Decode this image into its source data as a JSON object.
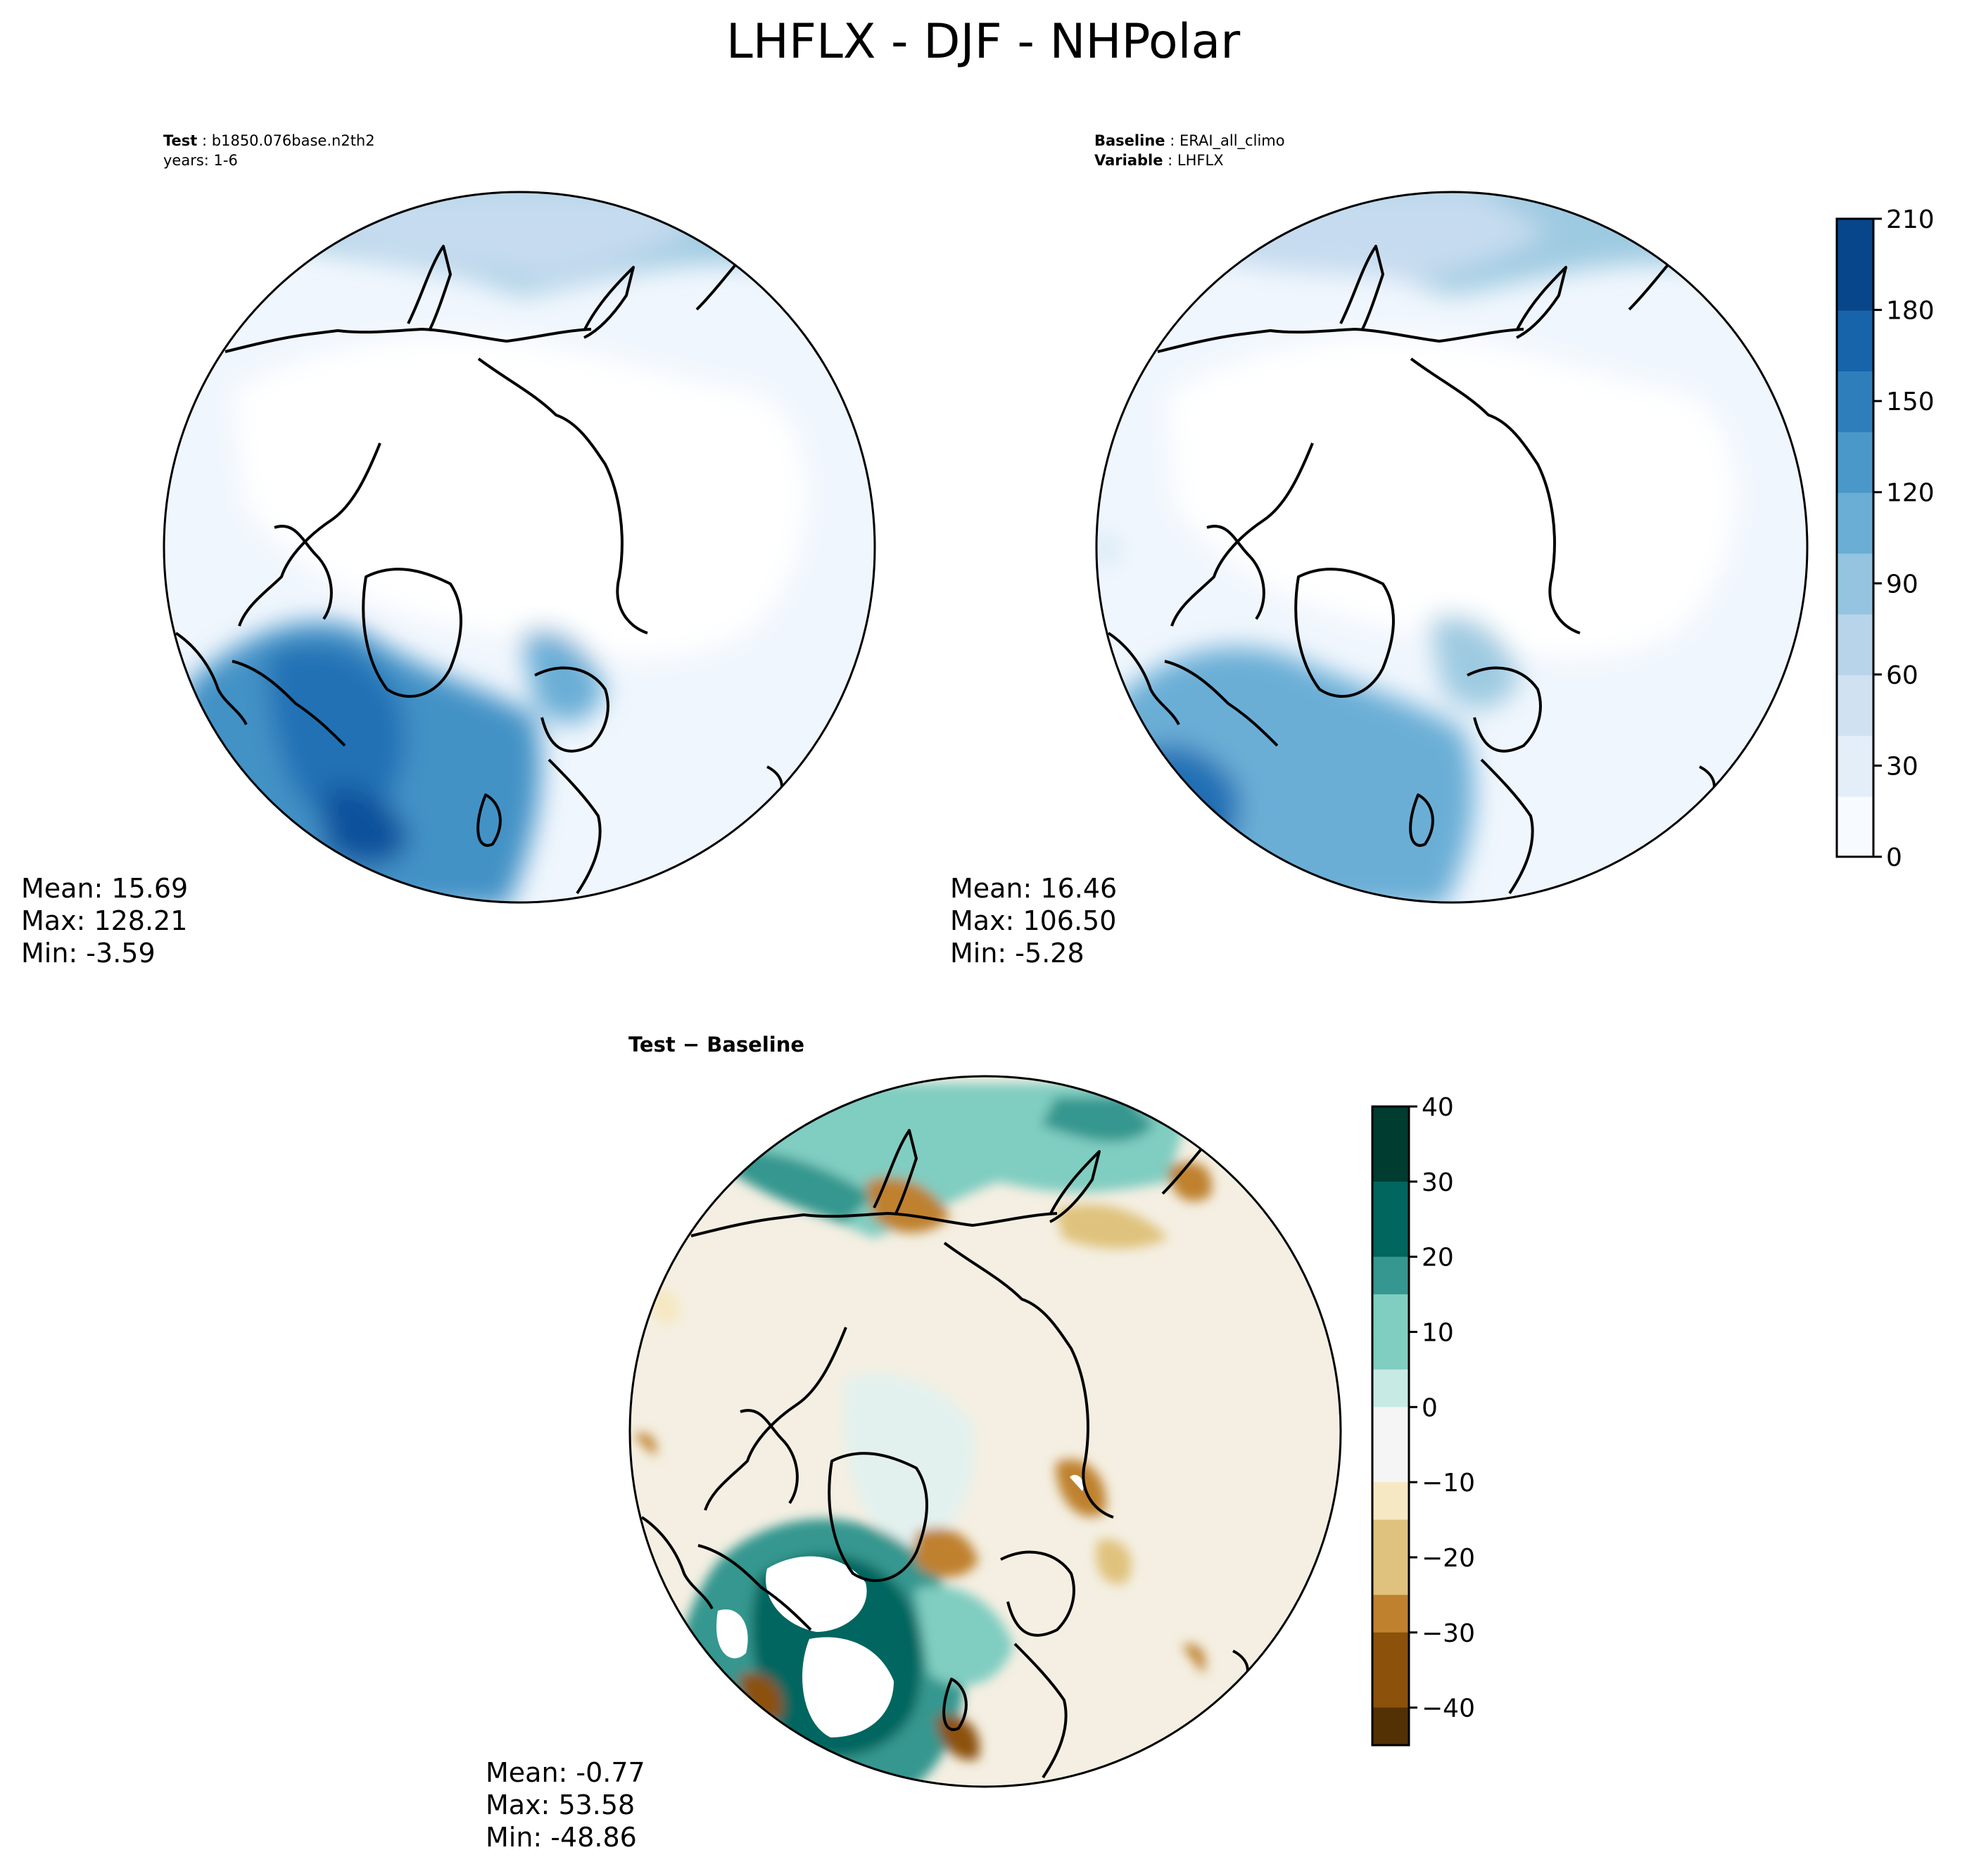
{
  "figure": {
    "title": "LHFLX - DJF - NHPolar"
  },
  "panels": {
    "test": {
      "label_key": "Test",
      "label_value": "b1850.076base.n2th2",
      "sub_text": "years: 1-6",
      "mean": "Mean: 15.69",
      "max": "Max: 128.21",
      "min": "Min: -3.59"
    },
    "baseline": {
      "label_key": "Baseline",
      "label_value": "ERAI_all_climo",
      "var_key": "Variable",
      "var_value": "LHFLX",
      "mean": "Mean: 16.46",
      "max": "Max: 106.50",
      "min": "Min: -5.28"
    },
    "diff": {
      "title": "Test − Baseline",
      "mean": "Mean: -0.77",
      "max": "Max: 53.58",
      "min": "Min: -48.86"
    }
  },
  "colorbars": {
    "abs": {
      "ticks": [
        "0",
        "30",
        "60",
        "90",
        "120",
        "150",
        "180",
        "210"
      ],
      "range": [
        0,
        210
      ],
      "colors": [
        "#f7fbff",
        "#e3eef9",
        "#d0e1f2",
        "#b7d4ea",
        "#94c4df",
        "#6aaed6",
        "#4a98c9",
        "#2e7ebc",
        "#1764ab",
        "#08468b"
      ]
    },
    "diff": {
      "ticks": [
        "40",
        "30",
        "20",
        "10",
        "0",
        "−10",
        "−20",
        "−30",
        "−40"
      ],
      "range": [
        -45,
        40
      ],
      "colors": [
        "#003c30",
        "#01665e",
        "#35978f",
        "#80cdc1",
        "#c7eae5",
        "#f5f5f5",
        "#f6e8c3",
        "#dfc27d",
        "#bf812d",
        "#8c510a",
        "#543005"
      ]
    }
  },
  "map_colors": {
    "abs_bg": "#f0f6fd",
    "abs_low": "#ffffff",
    "abs_ring": "#c6dbef",
    "abs_mid": "#6baed6",
    "abs_high": "#2171b5",
    "abs_peak": "#08519c",
    "diff_bg": "#f4efe2",
    "diff_pos1": "#c7eae5",
    "diff_pos2": "#80cdc1",
    "diff_pos3": "#01665e",
    "diff_neg1": "#dfc27d",
    "diff_neg2": "#bf812d",
    "diff_neg3": "#8c510a",
    "void": "#ffffff"
  }
}
